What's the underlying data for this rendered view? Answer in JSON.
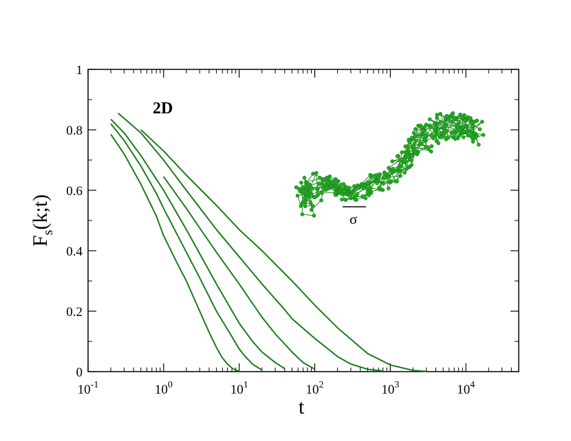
{
  "chart_data": {
    "type": "line",
    "x_scale": "log",
    "xlim": [
      0.1,
      50000
    ],
    "ylim": [
      0,
      1
    ],
    "xlabel": "t",
    "ylabel_main": "F",
    "ylabel_sub": "s",
    "ylabel_rest": "(k;t)",
    "annotation": "2D",
    "inset_label": "σ",
    "inset_color": "#22aa22",
    "line_color": "#1a7a1a",
    "x_ticks": [
      {
        "base": "10",
        "exp": "-1",
        "value": 0.1
      },
      {
        "base": "10",
        "exp": "0",
        "value": 1
      },
      {
        "base": "10",
        "exp": "1",
        "value": 10
      },
      {
        "base": "10",
        "exp": "2",
        "value": 100
      },
      {
        "base": "10",
        "exp": "3",
        "value": 1000
      },
      {
        "base": "10",
        "exp": "4",
        "value": 10000
      }
    ],
    "y_ticks": [
      {
        "label": "0",
        "value": 0
      },
      {
        "label": "0.2",
        "value": 0.2
      },
      {
        "label": "0.4",
        "value": 0.4
      },
      {
        "label": "0.6",
        "value": 0.6
      },
      {
        "label": "0.8",
        "value": 0.8
      },
      {
        "label": "1",
        "value": 1
      }
    ],
    "series": [
      {
        "x": [
          0.2,
          0.3,
          0.5,
          0.8,
          1,
          1.5,
          2,
          3,
          4,
          5,
          6,
          7,
          8,
          9,
          10
        ],
        "y": [
          0.785,
          0.72,
          0.62,
          0.515,
          0.45,
          0.36,
          0.3,
          0.2,
          0.13,
          0.08,
          0.045,
          0.025,
          0.012,
          0.005,
          0.002
        ]
      },
      {
        "x": [
          0.2,
          0.3,
          0.5,
          0.8,
          1,
          2,
          3,
          5,
          7,
          10,
          12,
          15,
          20
        ],
        "y": [
          0.82,
          0.765,
          0.68,
          0.59,
          0.54,
          0.395,
          0.31,
          0.2,
          0.14,
          0.075,
          0.05,
          0.025,
          0.005
        ]
      },
      {
        "x": [
          0.2,
          0.3,
          0.5,
          1,
          2,
          3,
          5,
          10,
          15,
          20,
          30,
          40
        ],
        "y": [
          0.835,
          0.79,
          0.715,
          0.6,
          0.47,
          0.39,
          0.29,
          0.16,
          0.1,
          0.065,
          0.03,
          0.01
        ]
      },
      {
        "x": [
          1,
          2,
          3,
          5,
          10,
          20,
          30,
          50,
          70,
          100
        ],
        "y": [
          0.645,
          0.54,
          0.475,
          0.395,
          0.29,
          0.18,
          0.125,
          0.065,
          0.03,
          0.008
        ]
      },
      {
        "x": [
          0.25,
          0.5,
          1,
          2,
          5,
          10,
          20,
          40,
          50,
          100,
          200,
          300,
          500,
          800
        ],
        "y": [
          0.855,
          0.79,
          0.7,
          0.6,
          0.47,
          0.38,
          0.29,
          0.205,
          0.175,
          0.11,
          0.05,
          0.025,
          0.008,
          0.002
        ]
      },
      {
        "x": [
          0.5,
          1,
          2,
          5,
          10,
          20,
          50,
          100,
          200,
          500,
          1000,
          2000,
          3000
        ],
        "y": [
          0.8,
          0.73,
          0.65,
          0.55,
          0.47,
          0.4,
          0.3,
          0.22,
          0.145,
          0.06,
          0.022,
          0.004,
          0.001
        ]
      }
    ]
  }
}
